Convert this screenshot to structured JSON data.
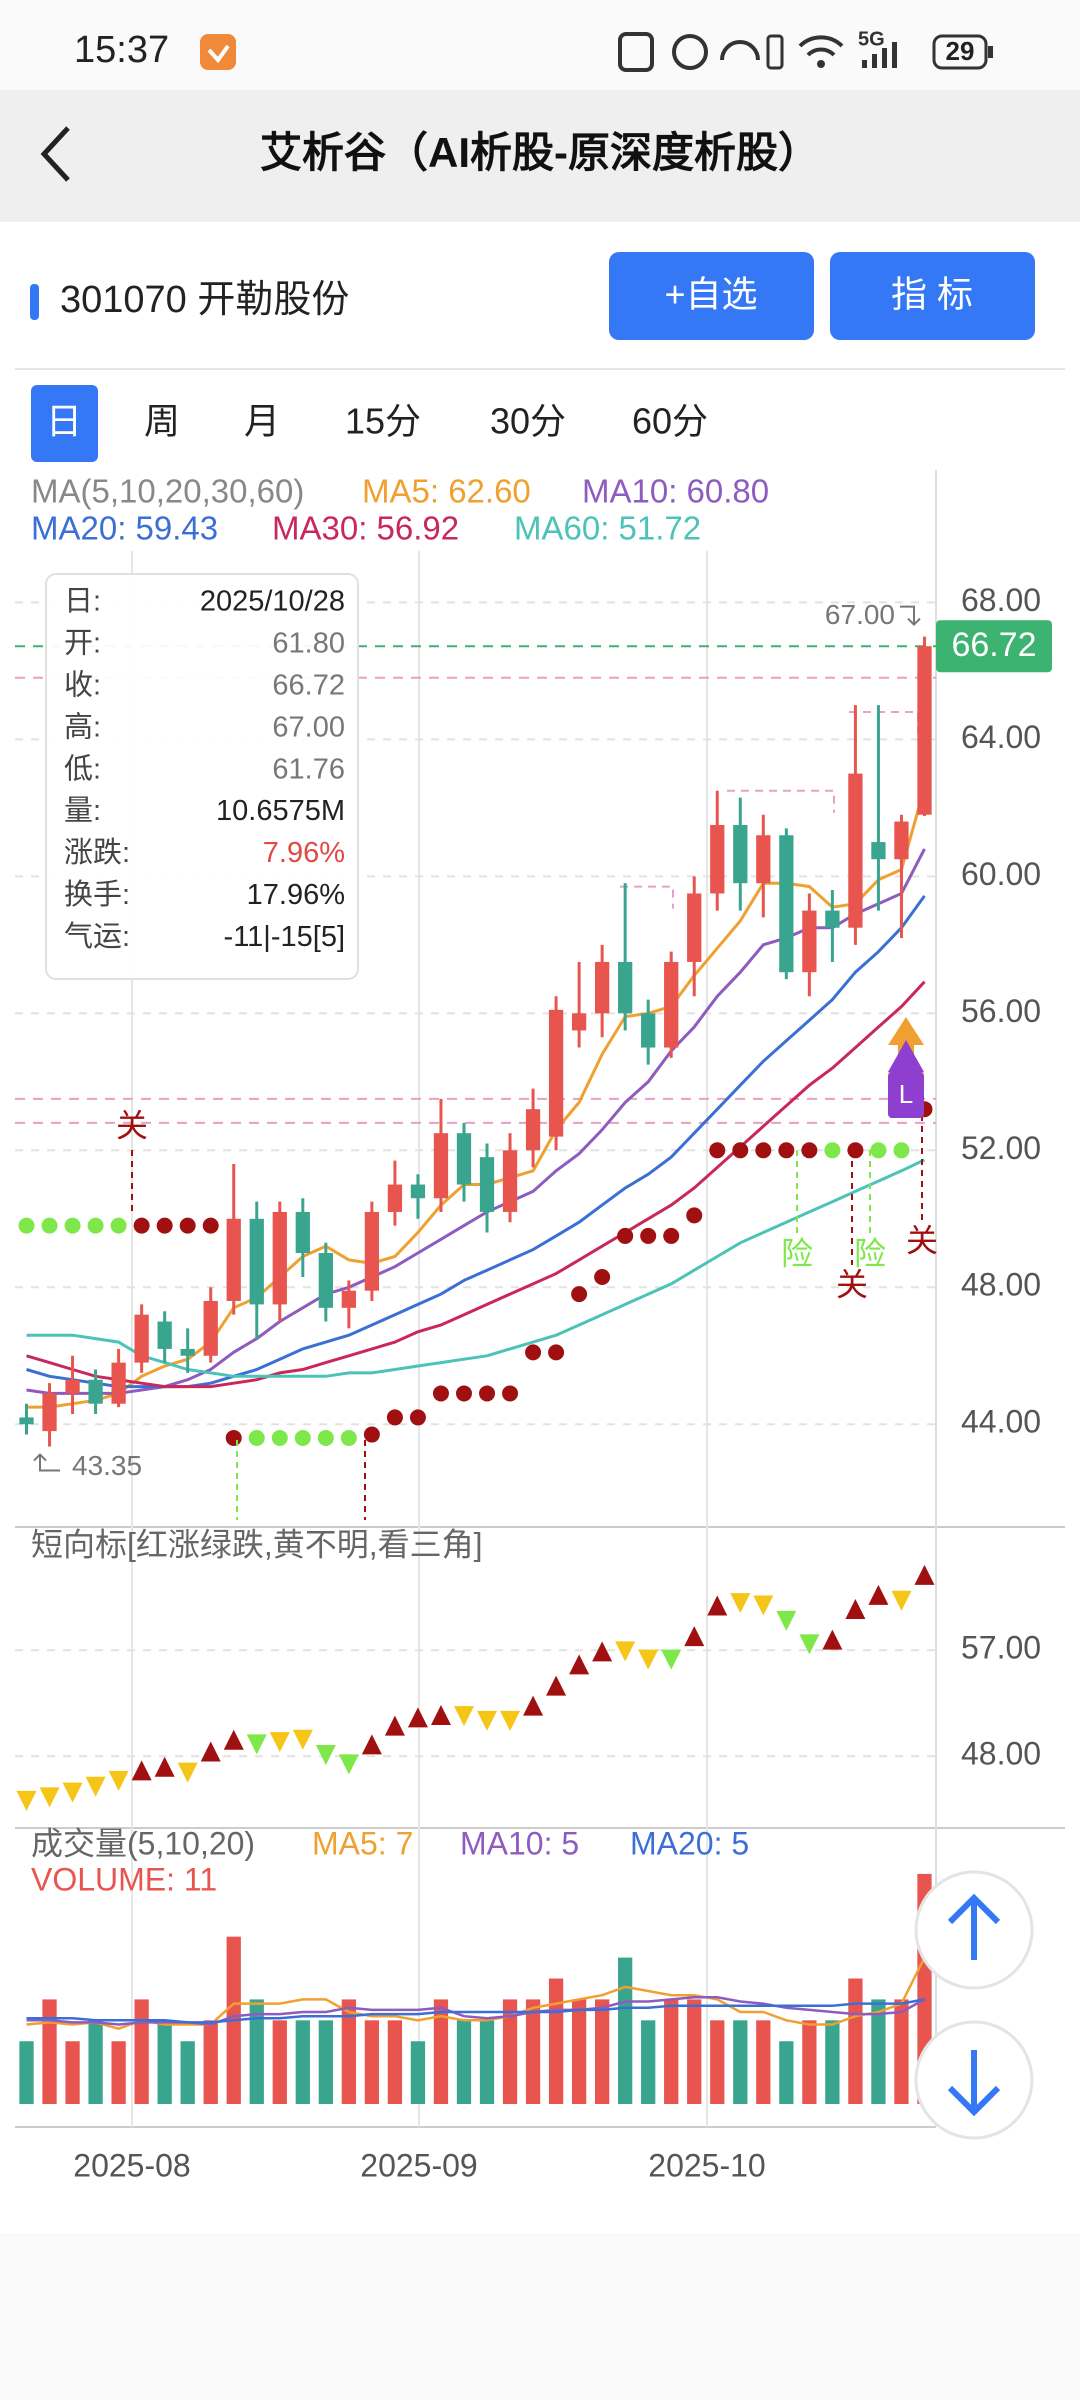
{
  "status_bar": {
    "time": "15:37",
    "network": "5G",
    "battery": "29"
  },
  "header": {
    "title": "艾析谷（AI析股-原深度析股）"
  },
  "stock": {
    "name": "301070 开勒股份",
    "buttons": [
      "+自选",
      "指 标"
    ]
  },
  "tabs": [
    "日",
    "周",
    "月",
    "15分",
    "30分",
    "60分"
  ],
  "info_box": {
    "rows": [
      {
        "label": "日:",
        "value": "2025/10/28",
        "color": "#222222"
      },
      {
        "label": "开:",
        "value": "61.80",
        "color": "#777777"
      },
      {
        "label": "收:",
        "value": "66.72",
        "color": "#777777"
      },
      {
        "label": "高:",
        "value": "67.00",
        "color": "#777777"
      },
      {
        "label": "低:",
        "value": "61.76",
        "color": "#777777"
      },
      {
        "label": "量:",
        "value": "10.6575M",
        "color": "#222222"
      },
      {
        "label": "涨跌:",
        "value": "7.96%",
        "color": "#e04a44"
      },
      {
        "label": "换手:",
        "value": "17.96%",
        "color": "#222222"
      },
      {
        "label": "气运:",
        "value": "-11|-15[5]",
        "color": "#222222"
      }
    ]
  },
  "marker_label": "L",
  "nav": {
    "tab_count": "2"
  },
  "chart_data": [
    {
      "type": "candlestick",
      "legend_title": "MA(5,10,20,30,60)",
      "open": [
        44.2,
        43.8,
        44.9,
        45.3,
        44.6,
        45.8,
        47.0,
        46.2,
        46.0,
        47.6,
        50.0,
        47.5,
        50.2,
        49.0,
        47.4,
        47.9,
        50.2,
        51.0,
        50.6,
        52.5,
        51.8,
        50.2,
        52.0,
        52.4,
        55.5,
        56.0,
        57.5,
        56.0,
        55.0,
        57.5,
        59.5,
        61.5,
        59.8,
        61.2,
        57.2,
        59.0,
        58.5,
        61.0,
        60.5,
        61.8
      ],
      "high": [
        44.6,
        45.2,
        46.0,
        45.6,
        46.2,
        47.5,
        47.3,
        46.8,
        48.0,
        51.6,
        50.5,
        50.5,
        50.6,
        49.3,
        48.2,
        50.5,
        51.7,
        51.3,
        53.5,
        52.8,
        52.2,
        52.5,
        53.8,
        56.5,
        57.5,
        58.0,
        59.8,
        56.4,
        57.8,
        60.0,
        62.5,
        62.3,
        61.8,
        61.4,
        59.5,
        59.6,
        65.0,
        65.0,
        61.8,
        67.0
      ],
      "low": [
        43.7,
        43.35,
        44.3,
        44.3,
        44.5,
        45.5,
        45.8,
        45.5,
        45.8,
        47.2,
        46.5,
        47.0,
        48.3,
        47.0,
        46.8,
        47.6,
        49.8,
        50.0,
        50.2,
        50.5,
        49.6,
        49.9,
        51.5,
        52.0,
        55.0,
        55.3,
        55.5,
        54.5,
        54.7,
        56.5,
        59.0,
        59.0,
        58.8,
        57.0,
        56.5,
        57.5,
        58.0,
        59.0,
        58.2,
        61.76
      ],
      "close": [
        44.0,
        44.9,
        45.3,
        44.6,
        45.8,
        47.2,
        46.2,
        46.0,
        47.6,
        50.0,
        47.5,
        50.2,
        49.0,
        47.4,
        47.9,
        50.2,
        51.0,
        50.6,
        52.5,
        51.0,
        50.2,
        52.0,
        53.2,
        56.1,
        56.0,
        57.5,
        56.0,
        55.0,
        57.5,
        59.5,
        61.5,
        59.8,
        61.2,
        57.2,
        59.0,
        58.5,
        63.0,
        60.5,
        61.6,
        66.72
      ],
      "up_color": "#e8554e",
      "down_color": "#3aa58f",
      "ylim": [
        41,
        69.5
      ],
      "yticks": [
        {
          "value": 68,
          "label": "68.00"
        },
        {
          "value": 64,
          "label": "64.00"
        },
        {
          "value": 60,
          "label": "60.00"
        },
        {
          "value": 56,
          "label": "56.00"
        },
        {
          "value": 52,
          "label": "52.00"
        },
        {
          "value": 48,
          "label": "48.00"
        },
        {
          "value": 44,
          "label": "44.00"
        }
      ],
      "ma_lines": [
        {
          "label": "MA5: 62.60",
          "color": "#f0a030",
          "values": [
            44.5,
            44.5,
            44.6,
            44.7,
            44.9,
            45.4,
            45.7,
            45.9,
            46.4,
            47.4,
            47.7,
            48.3,
            48.9,
            49.2,
            48.8,
            48.7,
            48.9,
            49.6,
            50.4,
            51.0,
            51.0,
            51.2,
            51.4,
            52.6,
            53.4,
            54.8,
            55.9,
            56.0,
            56.2,
            57.1,
            57.9,
            58.7,
            59.8,
            59.8,
            59.7,
            59.1,
            59.2,
            59.9,
            60.2,
            62.6
          ]
        },
        {
          "label": "MA10: 60.80",
          "color": "#8e5bbf",
          "values": [
            45.0,
            44.9,
            44.9,
            44.9,
            44.9,
            45.0,
            45.1,
            45.3,
            45.6,
            46.1,
            46.5,
            47.0,
            47.4,
            47.8,
            48.0,
            48.3,
            48.6,
            49.0,
            49.4,
            49.8,
            50.2,
            50.5,
            50.8,
            51.4,
            51.9,
            52.6,
            53.4,
            54.0,
            54.9,
            55.6,
            56.5,
            57.2,
            58.0,
            58.2,
            58.5,
            58.5,
            58.9,
            59.2,
            59.5,
            60.8
          ]
        },
        {
          "label": "MA20: 59.43",
          "color": "#3b6fd6",
          "values": [
            45.6,
            45.4,
            45.3,
            45.2,
            45.1,
            45.1,
            45.1,
            45.1,
            45.2,
            45.4,
            45.6,
            45.9,
            46.2,
            46.4,
            46.6,
            46.9,
            47.2,
            47.5,
            47.8,
            48.2,
            48.5,
            48.8,
            49.1,
            49.5,
            49.9,
            50.4,
            50.9,
            51.3,
            51.8,
            52.5,
            53.2,
            53.9,
            54.6,
            55.2,
            55.8,
            56.4,
            57.2,
            57.8,
            58.5,
            59.43
          ]
        },
        {
          "label": "MA30: 56.92",
          "color": "#c8285a",
          "values": [
            46.0,
            45.8,
            45.6,
            45.4,
            45.3,
            45.2,
            45.1,
            45.1,
            45.1,
            45.2,
            45.3,
            45.5,
            45.6,
            45.8,
            46.0,
            46.2,
            46.4,
            46.7,
            46.9,
            47.2,
            47.5,
            47.8,
            48.1,
            48.4,
            48.8,
            49.2,
            49.6,
            50.0,
            50.4,
            50.9,
            51.5,
            52.1,
            52.7,
            53.3,
            53.9,
            54.4,
            55.0,
            55.6,
            56.2,
            56.92
          ]
        },
        {
          "label": "MA60: 51.72",
          "color": "#4cc3b8",
          "values": [
            46.6,
            46.6,
            46.6,
            46.5,
            46.4,
            46.0,
            45.8,
            45.6,
            45.5,
            45.4,
            45.4,
            45.4,
            45.4,
            45.4,
            45.5,
            45.5,
            45.6,
            45.7,
            45.8,
            45.9,
            46.0,
            46.2,
            46.4,
            46.6,
            46.9,
            47.2,
            47.5,
            47.8,
            48.1,
            48.5,
            48.9,
            49.3,
            49.6,
            49.9,
            50.2,
            50.5,
            50.8,
            51.1,
            51.4,
            51.72
          ]
        }
      ],
      "last_price": {
        "value": 66.72,
        "label": "66.72"
      },
      "high_note": {
        "value": 67,
        "label": "67.00"
      },
      "low_note": {
        "value": 43.35,
        "label": "43.35"
      },
      "levels": [
        65.8,
        53.5,
        52.8
      ],
      "segments": [
        64.8,
        62.5,
        59.7
      ],
      "signal": {
        "values": [
          49.8,
          49.8,
          49.8,
          49.8,
          49.8,
          49.8,
          49.8,
          49.8,
          49.8,
          43.6,
          43.6,
          43.6,
          43.6,
          43.6,
          43.6,
          43.7,
          44.2,
          44.2,
          44.9,
          44.9,
          44.9,
          44.9,
          46.1,
          46.1,
          47.8,
          48.3,
          49.5,
          49.5,
          49.5,
          50.1,
          52.0,
          52.0,
          52.0,
          52.0,
          52.0,
          52.0,
          52.0,
          52.0,
          52.0,
          53.2
        ],
        "colors": [
          "#7ee84a",
          "#7ee84a",
          "#7ee84a",
          "#7ee84a",
          "#7ee84a",
          "#a01010",
          "#a01010",
          "#a01010",
          "#a01010",
          "#a01010",
          "#7ee84a",
          "#7ee84a",
          "#7ee84a",
          "#7ee84a",
          "#7ee84a",
          "#a01010",
          "#a01010",
          "#a01010",
          "#a01010",
          "#a01010",
          "#a01010",
          "#a01010",
          "#a01010",
          "#a01010",
          "#a01010",
          "#a01010",
          "#a01010",
          "#a01010",
          "#a01010",
          "#a01010",
          "#a01010",
          "#a01010",
          "#a01010",
          "#a01010",
          "#a01010",
          "#7ee84a",
          "#a01010",
          "#7ee84a",
          "#7ee84a",
          "#a01010"
        ]
      },
      "annotations": [
        "关",
        "险",
        "关",
        "险",
        "关"
      ],
      "xlabels": [
        "2025-08",
        "2025-09",
        "2025-10"
      ]
    },
    {
      "type": "scatter",
      "title": "短向标[红涨绿跌,黄不明,看三角]",
      "values": [
        44.2,
        44.5,
        44.9,
        45.4,
        45.9,
        46.8,
        47.1,
        46.6,
        48.4,
        49.4,
        49.0,
        49.2,
        49.4,
        48.1,
        47.3,
        49.0,
        50.6,
        51.3,
        51.5,
        51.4,
        51.0,
        51.0,
        52.3,
        54.0,
        55.8,
        56.9,
        56.9,
        56.2,
        56.2,
        58.2,
        60.8,
        61.0,
        60.8,
        59.5,
        57.5,
        57.9,
        60.5,
        61.7,
        61.2,
        63.4
      ],
      "colors": [
        "#f5c518",
        "#f5c518",
        "#f5c518",
        "#f5c518",
        "#f5c518",
        "#a01010",
        "#a01010",
        "#f5c518",
        "#a01010",
        "#a01010",
        "#7ee84a",
        "#f5c518",
        "#f5c518",
        "#7ee84a",
        "#7ee84a",
        "#a01010",
        "#a01010",
        "#a01010",
        "#a01010",
        "#f5c518",
        "#f5c518",
        "#f5c518",
        "#a01010",
        "#a01010",
        "#a01010",
        "#a01010",
        "#f5c518",
        "#f5c518",
        "#7ee84a",
        "#a01010",
        "#a01010",
        "#f5c518",
        "#f5c518",
        "#7ee84a",
        "#7ee84a",
        "#a01010",
        "#a01010",
        "#a01010",
        "#f5c518",
        "#a01010"
      ],
      "ylim": [
        41.9,
        67.3
      ],
      "yticks": [
        {
          "value": 57,
          "label": "57.00"
        },
        {
          "value": 48,
          "label": "48.00"
        }
      ]
    },
    {
      "type": "bar",
      "title": "成交量(5,10,20)",
      "value_label": "VOLUME: 11",
      "values": [
        3,
        5,
        3,
        4,
        3,
        5,
        4,
        3,
        4,
        8,
        5,
        4,
        4,
        4,
        5,
        4,
        4,
        3,
        5,
        4,
        4,
        5,
        5,
        6,
        5,
        5,
        7,
        4,
        5,
        5,
        4,
        4,
        4,
        3,
        4,
        4,
        6,
        5,
        5,
        11
      ],
      "ylim": [
        0,
        12
      ],
      "ma_lines": [
        {
          "label": "MA5: 7",
          "color": "#f0a030",
          "values": [
            3.8,
            3.9,
            3.8,
            3.9,
            3.6,
            4.0,
            3.8,
            3.8,
            3.8,
            4.8,
            4.8,
            4.8,
            5.0,
            5.0,
            4.4,
            4.2,
            4.2,
            4.0,
            4.2,
            4.0,
            4.0,
            4.2,
            4.6,
            4.8,
            5.0,
            5.2,
            5.6,
            5.4,
            5.2,
            5.2,
            5.0,
            4.4,
            4.4,
            4.0,
            3.8,
            3.8,
            4.2,
            4.4,
            4.8,
            7
          ]
        },
        {
          "label": "MA10: 5",
          "color": "#8e5bbf",
          "values": [
            4.0,
            4.0,
            3.9,
            3.9,
            3.8,
            3.9,
            3.9,
            3.9,
            3.8,
            4.2,
            4.3,
            4.3,
            4.4,
            4.4,
            4.6,
            4.5,
            4.5,
            4.5,
            4.6,
            4.2,
            4.1,
            4.2,
            4.4,
            4.5,
            4.5,
            4.6,
            4.9,
            4.9,
            5.0,
            5.1,
            5.1,
            4.9,
            4.8,
            4.6,
            4.5,
            4.4,
            4.3,
            4.3,
            4.4,
            5
          ]
        },
        {
          "label": "MA20: 5",
          "color": "#3b6fd6",
          "values": [
            4.1,
            4.1,
            4.1,
            4.0,
            4.0,
            4.0,
            4.0,
            3.9,
            3.9,
            4.0,
            4.1,
            4.1,
            4.2,
            4.2,
            4.2,
            4.3,
            4.3,
            4.3,
            4.4,
            4.4,
            4.4,
            4.4,
            4.4,
            4.4,
            4.5,
            4.5,
            4.6,
            4.6,
            4.7,
            4.7,
            4.7,
            4.7,
            4.7,
            4.7,
            4.7,
            4.7,
            4.8,
            4.8,
            4.8,
            5
          ]
        }
      ]
    }
  ]
}
